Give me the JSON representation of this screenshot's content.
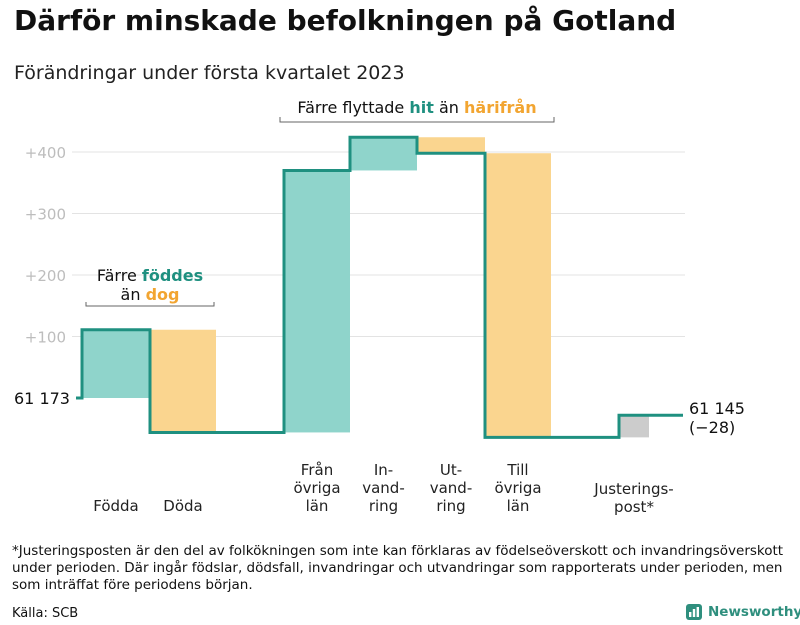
{
  "title": "Därför minskade befolkningen på Gotland",
  "subtitle": "Förändringar under första kvartalet 2023",
  "chart_data": {
    "type": "waterfall",
    "baseline": 0,
    "yticks": [
      {
        "value": 100,
        "label": "+100"
      },
      {
        "value": 200,
        "label": "+200"
      },
      {
        "value": 300,
        "label": "+300"
      },
      {
        "value": 400,
        "label": "+400"
      }
    ],
    "steps": [
      {
        "label": [
          "Födda"
        ],
        "from": 0,
        "to": 111,
        "kind": "in"
      },
      {
        "label": [
          "Döda"
        ],
        "from": 111,
        "to": -56,
        "kind": "out"
      },
      {
        "label": [
          "Från",
          "övriga",
          "län"
        ],
        "from": -56,
        "to": 370,
        "kind": "in"
      },
      {
        "label": [
          "In-",
          "vand-",
          "ring"
        ],
        "from": 370,
        "to": 424,
        "kind": "in"
      },
      {
        "label": [
          "Ut-",
          "vand-",
          "ring"
        ],
        "from": 424,
        "to": 398,
        "kind": "out"
      },
      {
        "label": [
          "Till",
          "övriga",
          "län"
        ],
        "from": 398,
        "to": -64,
        "kind": "out"
      },
      {
        "label": [
          "Justerings-",
          "post*"
        ],
        "from": -64,
        "to": -28,
        "kind": "adj"
      }
    ],
    "start_label": "61 173",
    "end_label": [
      "61 145",
      "(−28)"
    ],
    "annotations": {
      "top": {
        "pre": "Färre flyttade ",
        "a": "hit",
        "mid": " än ",
        "b": "härifrån"
      },
      "left": {
        "line1_pre": "Färre ",
        "line1_a": "föddes",
        "line2_pre": "än ",
        "line2_b": "dog"
      }
    },
    "colors": {
      "in": "#8fd4cb",
      "out": "#fad58f",
      "adj": "#cccccc",
      "line": "#1f9080",
      "accent_in": "#1f9080",
      "accent_out": "#f2a531"
    }
  },
  "footnote": "*Justeringsposten är den del av folkökningen som inte kan förklaras av födelseöverskott och invandringsöverskott under perioden. Där ingår födslar, dödsfall, invandringar och utvandringar som rapporterats under perioden, men som inträffat före periodens början.",
  "source": "Källa: SCB",
  "brand": "Newsworthy"
}
